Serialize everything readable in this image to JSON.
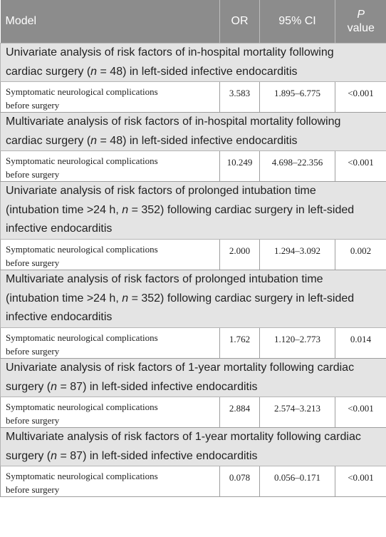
{
  "header": {
    "model": "Model",
    "or": "OR",
    "ci": "95% CI",
    "p_italic": "P",
    "p_rest": "value"
  },
  "sections": [
    {
      "line1": "Univariate analysis of risk factors of in-hospital mortality following",
      "line2_pre": "cardiac surgery (",
      "n_var": "n",
      "n_val": " = 48) in left-sided infective endocarditis",
      "row": {
        "variable_line1": "Symptomatic neurological complications",
        "variable_line2": "before surgery",
        "or": "3.583",
        "ci": "1.895–6.775",
        "p": "<0.001"
      }
    },
    {
      "line1": "Multivariate analysis of risk factors of in-hospital mortality following",
      "line2_pre": "cardiac surgery (",
      "n_var": "n",
      "n_val": " = 48) in left-sided infective endocarditis",
      "row": {
        "variable_line1": "Symptomatic neurological complications",
        "variable_line2": "before surgery",
        "or": "10.249",
        "ci": "4.698–22.356",
        "p": "<0.001"
      }
    },
    {
      "line1": "Univariate analysis of risk factors of prolonged intubation time",
      "line2_pre": "(intubation time >24 h, ",
      "n_var": "n",
      "n_val": " = 352) following cardiac surgery in left-sided",
      "line3": "infective endocarditis",
      "row": {
        "variable_line1": "Symptomatic neurological complications",
        "variable_line2": "before surgery",
        "or": "2.000",
        "ci": "1.294–3.092",
        "p": "0.002"
      }
    },
    {
      "line1": "Multivariate analysis of risk factors of prolonged intubation time",
      "line2_pre": "(intubation time >24 h, ",
      "n_var": "n",
      "n_val": " = 352) following cardiac surgery in left-sided",
      "line3": "infective endocarditis",
      "row": {
        "variable_line1": "Symptomatic neurological complications",
        "variable_line2": "before surgery",
        "or": "1.762",
        "ci": "1.120–2.773",
        "p": "0.014"
      }
    },
    {
      "line1": "Univariate analysis of risk factors of 1-year mortality following cardiac",
      "line2_pre": "surgery (",
      "n_var": "n",
      "n_val": " = 87) in left-sided infective endocarditis",
      "row": {
        "variable_line1": "Symptomatic neurological complications",
        "variable_line2": "before surgery",
        "or": "2.884",
        "ci": "2.574–3.213",
        "p": "<0.001"
      }
    },
    {
      "line1": "Multivariate analysis of risk factors of 1-year mortality following cardiac",
      "line2_pre": "surgery (",
      "n_var": "n",
      "n_val": " = 87) in left-sided infective endocarditis",
      "row": {
        "variable_line1": "Symptomatic neurological complications",
        "variable_line2": "before surgery",
        "or": "0.078",
        "ci": "0.056–0.171",
        "p": "<0.001"
      }
    }
  ]
}
